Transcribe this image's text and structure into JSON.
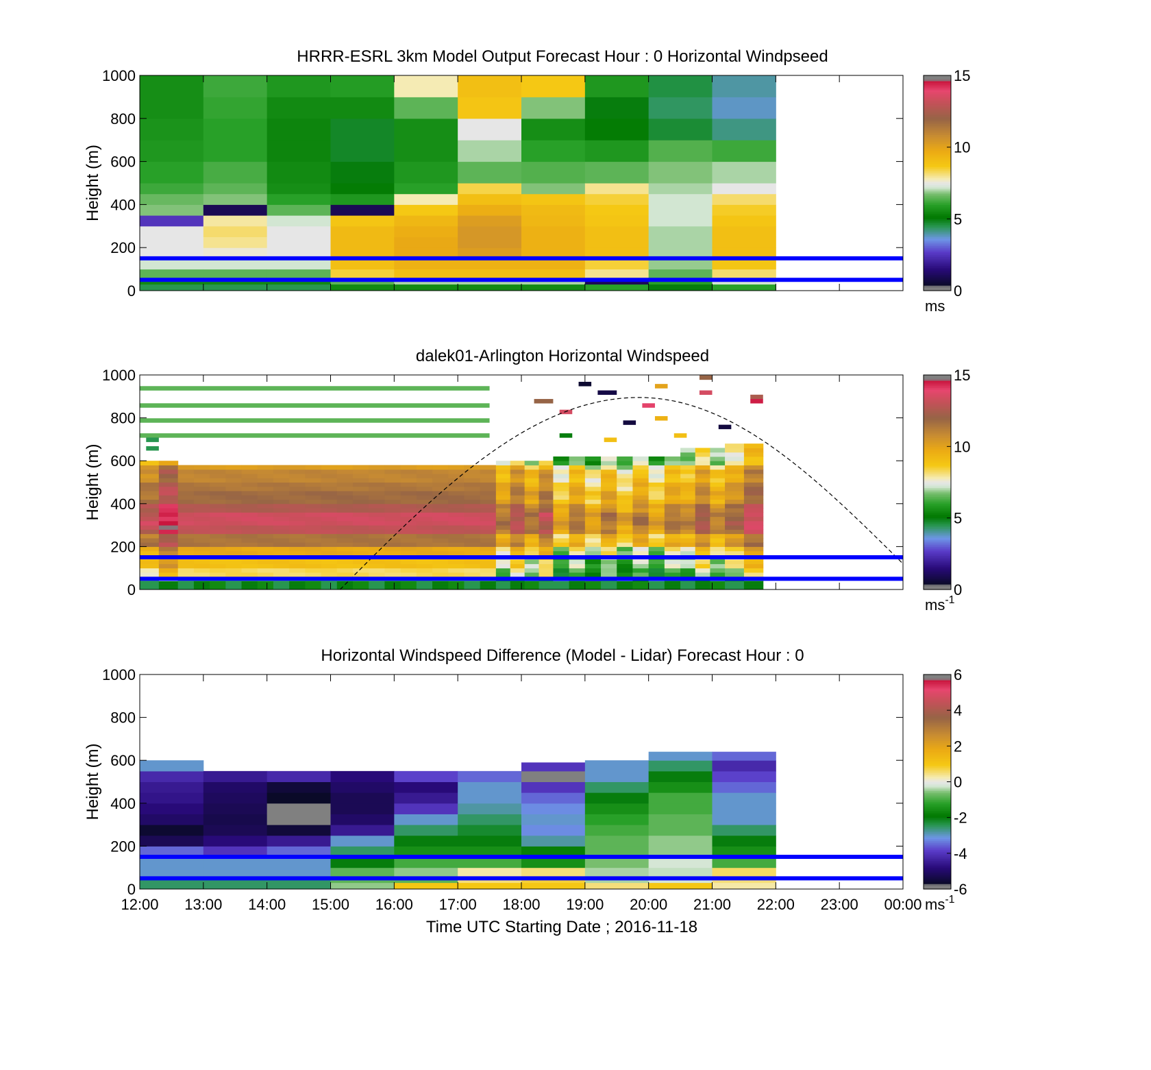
{
  "x_tick_labels": [
    "12:00",
    "13:00",
    "14:00",
    "15:00",
    "16:00",
    "17:00",
    "18:00",
    "19:00",
    "20:00",
    "21:00",
    "22:00",
    "23:00",
    "00:00"
  ],
  "xlabel": "Time UTC  Starting Date ; 2016-11-18",
  "reference_heights_m": [
    150,
    50
  ],
  "reference_line_color": "#0000ff",
  "chart_data": [
    {
      "type": "heatmap",
      "title": "HRRR-ESRL 3km Model Output   Forecast Hour : 0 Horizontal Windpseed",
      "ylabel": "Height (m)",
      "ylim": [
        0,
        1000
      ],
      "y_tick_labels": [
        "0",
        "200",
        "400",
        "600",
        "800",
        "1000"
      ],
      "x_hours_start": 12,
      "x_hours_end": 24,
      "colorbar": {
        "min": 0,
        "max": 15,
        "tick_labels": [
          "0",
          "5",
          "10",
          "15"
        ],
        "unit": "ms",
        "unit_sup": ""
      },
      "row_heights_m": [
        0,
        30,
        60,
        100,
        150,
        200,
        250,
        300,
        350,
        400,
        450,
        500,
        600,
        700,
        800,
        900,
        1000
      ],
      "columns": [
        {
          "t0": 12,
          "t1": 13,
          "values": [
            4.5,
            5.5,
            6.5,
            7.2,
            7.5,
            7.5,
            7.5,
            2.5,
            6.8,
            6.6,
            6.2,
            6.0,
            5.8,
            5.7,
            5.6,
            5.6
          ]
        },
        {
          "t0": 13,
          "t1": 14,
          "values": [
            4.5,
            5.5,
            6.5,
            7.2,
            7.6,
            8.0,
            8.2,
            7.9,
            1.0,
            6.8,
            6.5,
            6.3,
            6.0,
            6.0,
            6.1,
            6.2
          ]
        },
        {
          "t0": 14,
          "t1": 15,
          "values": [
            4.5,
            5.5,
            6.5,
            7.2,
            7.5,
            7.5,
            7.5,
            7.2,
            6.5,
            6.0,
            5.6,
            5.5,
            5.4,
            5.4,
            5.5,
            5.8
          ]
        },
        {
          "t0": 15,
          "t1": 16,
          "values": [
            5.5,
            6.5,
            8.5,
            9.0,
            9.2,
            9.2,
            9.2,
            8.8,
            1.0,
            5.8,
            5.2,
            5.0,
            4.8,
            4.8,
            5.5,
            5.9
          ]
        },
        {
          "t0": 16,
          "t1": 17,
          "values": [
            5.5,
            7.0,
            9.0,
            9.5,
            9.8,
            9.8,
            9.6,
            9.3,
            8.7,
            7.8,
            6.0,
            5.8,
            5.6,
            5.6,
            6.5,
            7.8
          ]
        },
        {
          "t0": 17,
          "t1": 18,
          "values": [
            5.5,
            7.0,
            9.0,
            9.5,
            10.2,
            10.4,
            10.4,
            10.2,
            9.6,
            9.0,
            8.4,
            6.5,
            7.0,
            7.5,
            8.8,
            9.0
          ]
        },
        {
          "t0": 18,
          "t1": 19,
          "values": [
            5.5,
            7.0,
            9.0,
            9.5,
            9.5,
            9.5,
            9.5,
            9.3,
            9.2,
            8.8,
            6.8,
            6.4,
            6.0,
            5.6,
            6.8,
            8.7
          ]
        },
        {
          "t0": 19,
          "t1": 20,
          "values": [
            6.0,
            1.0,
            8.0,
            8.5,
            9.0,
            9.0,
            9.0,
            8.8,
            8.7,
            8.5,
            8.0,
            6.5,
            5.8,
            5.2,
            5.0,
            5.8
          ]
        },
        {
          "t0": 20,
          "t1": 21,
          "values": [
            5.0,
            6.0,
            6.5,
            6.9,
            7.0,
            7.0,
            7.0,
            7.2,
            7.2,
            7.2,
            7.0,
            6.8,
            6.4,
            4.7,
            4.4,
            4.6
          ]
        },
        {
          "t0": 21,
          "t1": 22,
          "values": [
            6.0,
            7.2,
            8.2,
            8.8,
            9.0,
            9.0,
            9.0,
            8.8,
            8.6,
            8.2,
            7.5,
            7.0,
            6.2,
            4.2,
            3.8,
            4.0
          ]
        }
      ]
    },
    {
      "type": "heatmap",
      "title": "dalek01-Arlington  Horizontal Windspeed",
      "ylabel": "Height (m)",
      "ylim": [
        0,
        1000
      ],
      "y_tick_labels": [
        "0",
        "200",
        "400",
        "600",
        "800",
        "1000"
      ],
      "x_hours_start": 12,
      "x_hours_end": 24,
      "colorbar": {
        "min": 0,
        "max": 15,
        "tick_labels": [
          "0",
          "5",
          "10",
          "15"
        ],
        "unit": "ms",
        "unit_sup": "-1"
      },
      "layers": [
        {
          "y0": 0,
          "y1": 30,
          "value": 5.0
        },
        {
          "y0": 30,
          "y1": 60,
          "value": 6.5
        },
        {
          "y0": 60,
          "y1": 100,
          "value": 8.3
        },
        {
          "y0": 100,
          "y1": 150,
          "value": 9.0
        },
        {
          "y0": 150,
          "y1": 200,
          "value": 9.8
        },
        {
          "y0": 200,
          "y1": 250,
          "value": 11.5
        },
        {
          "y0": 250,
          "y1": 300,
          "value": 13.0
        },
        {
          "y0": 300,
          "y1": 350,
          "value": 13.4
        },
        {
          "y0": 350,
          "y1": 400,
          "value": 12.6
        },
        {
          "y0": 400,
          "y1": 450,
          "value": 11.8
        },
        {
          "y0": 450,
          "y1": 500,
          "value": 11.4
        },
        {
          "y0": 500,
          "y1": 550,
          "value": 11.0
        },
        {
          "y0": 550,
          "y1": 580,
          "value": 10.2
        }
      ],
      "segments": [
        {
          "t0": 12.0,
          "t1": 12.6,
          "top": 600,
          "shift": 0.4
        },
        {
          "t0": 12.6,
          "t1": 17.6,
          "top": 580,
          "shift": 0.0
        },
        {
          "t0": 17.6,
          "t1": 18.5,
          "top": 600,
          "shift": -1.2
        },
        {
          "t0": 18.5,
          "t1": 20.5,
          "top": 620,
          "shift": -2.6
        },
        {
          "t0": 20.5,
          "t1": 21.2,
          "top": 650,
          "shift": -1.6
        },
        {
          "t0": 21.2,
          "t1": 21.8,
          "top": 680,
          "shift": -0.6
        }
      ],
      "sparse_cells": [
        {
          "t0": 12.0,
          "t1": 17.5,
          "y": 940,
          "value": 6.5
        },
        {
          "t0": 12.0,
          "t1": 17.5,
          "y": 860,
          "value": 6.5
        },
        {
          "t0": 12.0,
          "t1": 17.5,
          "y": 790,
          "value": 6.5
        },
        {
          "t0": 12.0,
          "t1": 17.5,
          "y": 720,
          "value": 6.5
        },
        {
          "t0": 12.1,
          "t1": 12.3,
          "y": 700,
          "value": 4.5
        },
        {
          "t0": 12.1,
          "t1": 12.3,
          "y": 660,
          "value": 4.5
        },
        {
          "t0": 18.2,
          "t1": 18.5,
          "y": 880,
          "value": 12.0
        },
        {
          "t0": 18.6,
          "t1": 18.8,
          "y": 830,
          "value": 13.5
        },
        {
          "t0": 18.9,
          "t1": 19.1,
          "y": 960,
          "value": 0.5
        },
        {
          "t0": 19.2,
          "t1": 19.5,
          "y": 920,
          "value": 0.8
        },
        {
          "t0": 19.6,
          "t1": 19.8,
          "y": 780,
          "value": 0.7
        },
        {
          "t0": 19.9,
          "t1": 20.1,
          "y": 860,
          "value": 14.0
        },
        {
          "t0": 20.1,
          "t1": 20.3,
          "y": 950,
          "value": 10.0
        },
        {
          "t0": 20.1,
          "t1": 20.3,
          "y": 800,
          "value": 9.5
        },
        {
          "t0": 20.8,
          "t1": 21.0,
          "y": 990,
          "value": 12.0
        },
        {
          "t0": 20.8,
          "t1": 21.0,
          "y": 920,
          "value": 13.5
        },
        {
          "t0": 21.1,
          "t1": 21.3,
          "y": 760,
          "value": 0.7
        },
        {
          "t0": 21.6,
          "t1": 21.8,
          "y": 900,
          "value": 12.5
        },
        {
          "t0": 21.6,
          "t1": 21.8,
          "y": 880,
          "value": 14.5
        },
        {
          "t0": 18.6,
          "t1": 18.8,
          "y": 720,
          "value": 5.0
        },
        {
          "t0": 19.3,
          "t1": 19.5,
          "y": 700,
          "value": 9.0
        },
        {
          "t0": 20.4,
          "t1": 20.6,
          "y": 720,
          "value": 9.0
        }
      ],
      "curve": {
        "t_start": 15.15,
        "t_peak": 19.85,
        "t_end": 24.0,
        "y_peak": 895,
        "y_end": 120
      }
    },
    {
      "type": "heatmap",
      "title": "Horizontal Windspeed Difference (Model - Lidar) Forecast Hour : 0",
      "ylabel": "Height (m)",
      "ylim": [
        0,
        1000
      ],
      "y_tick_labels": [
        "0",
        "200",
        "400",
        "600",
        "800",
        "1000"
      ],
      "x_hours_start": 12,
      "x_hours_end": 24,
      "colorbar": {
        "min": -6,
        "max": 6,
        "tick_labels": [
          "-6",
          "-4",
          "-2",
          "0",
          "2",
          "4",
          "6"
        ],
        "unit": "ms",
        "unit_sup": "-1"
      },
      "row_heights_m": [
        0,
        30,
        60,
        100,
        150,
        200,
        250,
        300,
        350,
        400,
        450,
        500,
        550,
        600,
        650
      ],
      "columns": [
        {
          "t0": 12,
          "t1": 13,
          "top": 600,
          "values": [
            -2.5,
            -2.5,
            -3.0,
            -3.0,
            -3.5,
            -5.2,
            -5.6,
            -5.0,
            -4.8,
            -4.6,
            -4.5,
            -4.2,
            -3.0
          ]
        },
        {
          "t0": 13,
          "t1": 14,
          "top": 570,
          "values": [
            -2.5,
            -2.5,
            -3.0,
            -3.0,
            -4.0,
            -4.8,
            -5.2,
            -5.3,
            -5.2,
            -5.1,
            -5.0,
            -4.5
          ]
        },
        {
          "t0": 14,
          "t1": 15,
          "top": 570,
          "values": [
            -2.5,
            -2.5,
            -3.0,
            -3.0,
            -3.5,
            -4.5,
            -5.5,
            -5.8,
            -5.8,
            -5.7,
            -5.5,
            -4.2
          ]
        },
        {
          "t0": 15,
          "t1": 16,
          "top": 570,
          "values": [
            -0.5,
            -0.8,
            -0.8,
            -2.0,
            -2.5,
            -3.0,
            -4.5,
            -5.0,
            -5.2,
            -5.2,
            -5.0,
            -4.8
          ]
        },
        {
          "t0": 16,
          "t1": 17,
          "top": 570,
          "values": [
            1.0,
            -0.8,
            -0.5,
            -1.0,
            -1.5,
            -2.0,
            -2.5,
            -3.0,
            -4.0,
            -4.5,
            -4.8,
            -3.8
          ]
        },
        {
          "t0": 17,
          "t1": 18,
          "top": 570,
          "values": [
            1.0,
            0.5,
            0.3,
            -1.0,
            -1.5,
            -2.0,
            -2.2,
            -2.5,
            -2.8,
            -3.0,
            -3.0,
            -3.5
          ]
        },
        {
          "t0": 18,
          "t1": 19,
          "top": 590,
          "values": [
            1.0,
            0.8,
            0.5,
            -1.5,
            -1.8,
            -2.8,
            -3.2,
            -3.0,
            -3.2,
            -3.5,
            -4.0,
            -5.8,
            -4.0
          ]
        },
        {
          "t0": 19,
          "t1": 20,
          "top": 600,
          "values": [
            0.5,
            -0.4,
            -0.4,
            -0.6,
            -0.8,
            -0.8,
            -1.0,
            -1.2,
            -1.5,
            -2.0,
            -2.5,
            -3.0,
            -3.0
          ]
        },
        {
          "t0": 20,
          "t1": 21,
          "top": 640,
          "values": [
            1.0,
            -0.2,
            -0.3,
            -0.2,
            -0.5,
            -0.5,
            -0.8,
            -0.8,
            -1.0,
            -1.0,
            -1.5,
            -2.0,
            -2.5,
            -3.0
          ]
        },
        {
          "t0": 21,
          "t1": 22,
          "top": 640,
          "values": [
            0.3,
            0.5,
            0.6,
            -1.0,
            -1.5,
            -2.0,
            -2.5,
            -3.0,
            -3.0,
            -3.0,
            -3.5,
            -3.8,
            -4.2,
            -3.5
          ]
        }
      ]
    }
  ]
}
